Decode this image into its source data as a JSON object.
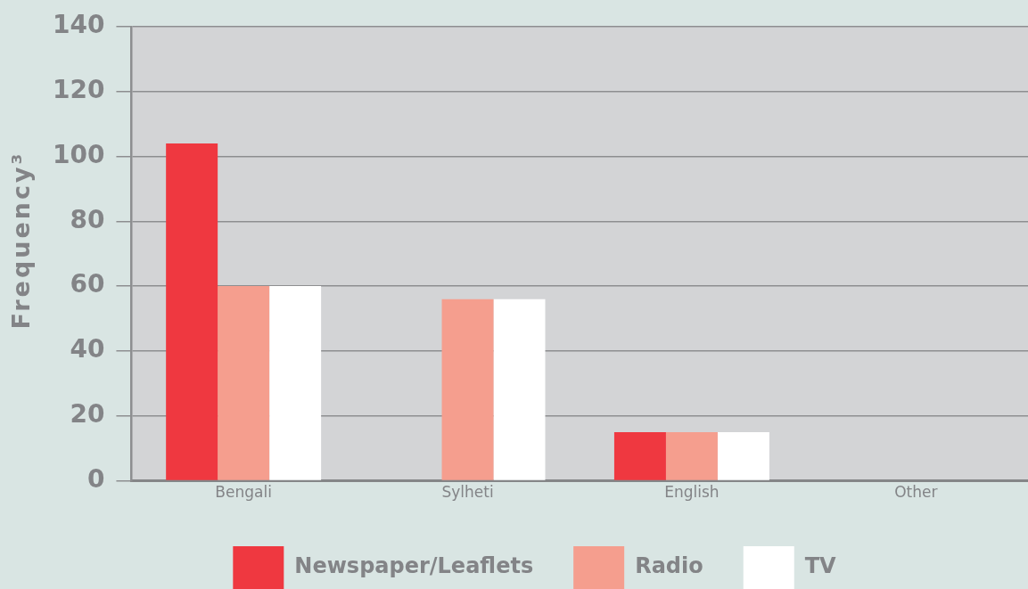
{
  "chart_data": {
    "type": "bar",
    "ylabel": "Frequency³",
    "categories": [
      "Bengali",
      "Sylheti",
      "English",
      "Other"
    ],
    "series": [
      {
        "name": "Newspaper/Leaflets",
        "color": "#ef3840",
        "values": [
          104,
          0,
          15,
          0
        ]
      },
      {
        "name": "Radio",
        "color": "#f59e8e",
        "values": [
          60,
          56,
          15,
          0
        ]
      },
      {
        "name": "TV",
        "color": "#ffffff",
        "values": [
          60,
          56,
          15,
          0
        ]
      }
    ],
    "ylim": [
      0,
      140
    ],
    "yticks": [
      0,
      20,
      40,
      60,
      80,
      100,
      120,
      140
    ],
    "grid": "y",
    "legend": "bottom"
  }
}
